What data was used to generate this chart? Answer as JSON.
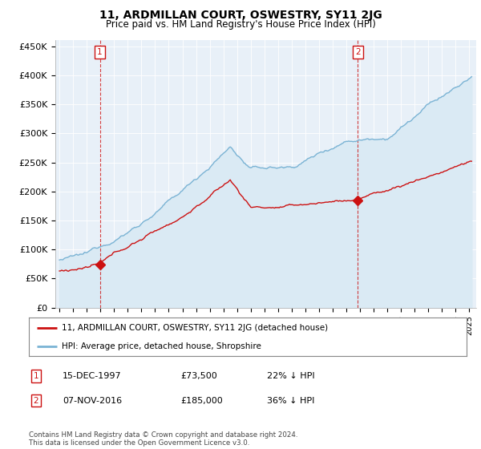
{
  "title": "11, ARDMILLAN COURT, OSWESTRY, SY11 2JG",
  "subtitle": "Price paid vs. HM Land Registry's House Price Index (HPI)",
  "ylabel_ticks": [
    "£0",
    "£50K",
    "£100K",
    "£150K",
    "£200K",
    "£250K",
    "£300K",
    "£350K",
    "£400K",
    "£450K"
  ],
  "ylabel_values": [
    0,
    50000,
    100000,
    150000,
    200000,
    250000,
    300000,
    350000,
    400000,
    450000
  ],
  "ylim": [
    0,
    460000
  ],
  "xlim_start": 1994.7,
  "xlim_end": 2025.5,
  "hpi_color": "#7ab3d4",
  "hpi_fill_color": "#daeaf4",
  "price_color": "#cc1111",
  "marker_color": "#cc1111",
  "sale1_year": 1997.958,
  "sale1_price": 73500,
  "sale2_year": 2016.836,
  "sale2_price": 185000,
  "legend_label1": "11, ARDMILLAN COURT, OSWESTRY, SY11 2JG (detached house)",
  "legend_label2": "HPI: Average price, detached house, Shropshire",
  "annotation1_num": "1",
  "annotation2_num": "2",
  "table_row1": [
    "1",
    "15-DEC-1997",
    "£73,500",
    "22% ↓ HPI"
  ],
  "table_row2": [
    "2",
    "07-NOV-2016",
    "£185,000",
    "36% ↓ HPI"
  ],
  "footnote": "Contains HM Land Registry data © Crown copyright and database right 2024.\nThis data is licensed under the Open Government Licence v3.0.",
  "plot_bg_color": "#e8f0f8",
  "background_color": "#ffffff",
  "grid_color": "#ffffff"
}
